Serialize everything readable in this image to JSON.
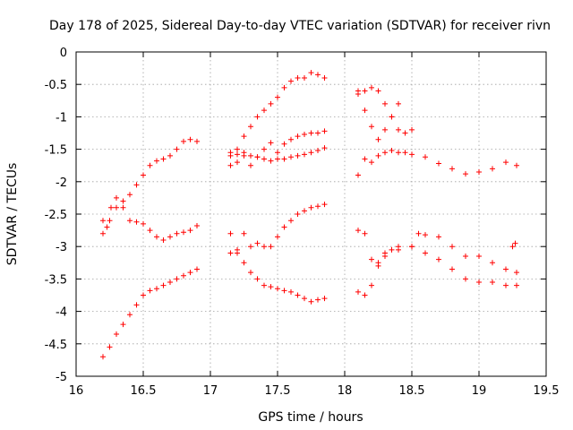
{
  "chart_data": {
    "type": "scatter",
    "title": "Day 178 of 2025, Sidereal Day-to-day VTEC variation (SDTVAR) for receiver rivn",
    "xlabel": "GPS time / hours",
    "ylabel": "SDTVAR / TECUs",
    "xlim": [
      16,
      19.5
    ],
    "ylim": [
      -5,
      0
    ],
    "xticks": [
      "16",
      "16.5",
      "17",
      "17.5",
      "18",
      "18.5",
      "19",
      "19.5"
    ],
    "yticks": [
      "0",
      "-0.5",
      "-1",
      "-1.5",
      "-2",
      "-2.5",
      "-3",
      "-3.5",
      "-4",
      "-4.5",
      "-5"
    ],
    "grid": true,
    "marker": "+",
    "color": "#ff0000",
    "series": [
      {
        "x": [
          16.2,
          16.25,
          16.3,
          16.35,
          16.4,
          16.45,
          16.5,
          16.55,
          16.6,
          16.65,
          16.7,
          16.75,
          16.8,
          16.85,
          16.9
        ],
        "y": [
          -2.8,
          -2.6,
          -2.4,
          -2.3,
          -2.2,
          -2.05,
          -1.9,
          -1.75,
          -1.68,
          -1.65,
          -1.6,
          -1.5,
          -1.38,
          -1.35,
          -1.38
        ]
      },
      {
        "x": [
          16.2,
          16.23,
          16.26,
          16.3,
          16.35,
          16.4,
          16.45,
          16.5,
          16.55,
          16.6,
          16.65,
          16.7,
          16.75,
          16.8,
          16.85,
          16.9
        ],
        "y": [
          -2.6,
          -2.7,
          -2.4,
          -2.25,
          -2.4,
          -2.6,
          -2.62,
          -2.65,
          -2.75,
          -2.85,
          -2.9,
          -2.85,
          -2.8,
          -2.78,
          -2.75,
          -2.68
        ]
      },
      {
        "x": [
          16.2,
          16.25,
          16.3,
          16.35,
          16.4,
          16.45,
          16.5,
          16.55,
          16.6,
          16.65,
          16.7,
          16.75,
          16.8,
          16.85,
          16.9
        ],
        "y": [
          -4.7,
          -4.55,
          -4.35,
          -4.2,
          -4.05,
          -3.9,
          -3.75,
          -3.68,
          -3.65,
          -3.6,
          -3.55,
          -3.5,
          -3.45,
          -3.4,
          -3.35
        ]
      },
      {
        "x": [
          17.15,
          17.2,
          17.25,
          17.3,
          17.35,
          17.4,
          17.45,
          17.5,
          17.55,
          17.6,
          17.65,
          17.7,
          17.75,
          17.8,
          17.85
        ],
        "y": [
          -1.75,
          -1.5,
          -1.3,
          -1.15,
          -1.0,
          -0.9,
          -0.8,
          -0.7,
          -0.55,
          -0.45,
          -0.4,
          -0.4,
          -0.32,
          -0.35,
          -0.4
        ]
      },
      {
        "x": [
          17.15,
          17.2,
          17.25,
          17.3,
          17.35,
          17.4,
          17.45,
          17.5,
          17.55,
          17.6,
          17.65,
          17.7,
          17.75,
          17.8,
          17.85
        ],
        "y": [
          -1.6,
          -1.7,
          -1.55,
          -1.75,
          -1.62,
          -1.5,
          -1.4,
          -1.55,
          -1.42,
          -1.35,
          -1.3,
          -1.27,
          -1.25,
          -1.25,
          -1.22
        ]
      },
      {
        "x": [
          17.15,
          17.2,
          17.25,
          17.3,
          17.35,
          17.4,
          17.45,
          17.5,
          17.55,
          17.6,
          17.65,
          17.7,
          17.75,
          17.8,
          17.85
        ],
        "y": [
          -1.55,
          -1.58,
          -1.6,
          -1.6,
          -1.62,
          -1.65,
          -1.68,
          -1.65,
          -1.65,
          -1.62,
          -1.6,
          -1.58,
          -1.55,
          -1.52,
          -1.48
        ]
      },
      {
        "x": [
          17.15,
          17.2,
          17.25,
          17.3,
          17.35,
          17.4,
          17.45,
          17.5,
          17.55,
          17.6,
          17.65,
          17.7,
          17.75,
          17.8,
          17.85
        ],
        "y": [
          -3.1,
          -3.05,
          -2.8,
          -3.0,
          -2.95,
          -3.0,
          -3.0,
          -2.85,
          -2.7,
          -2.6,
          -2.5,
          -2.45,
          -2.4,
          -2.38,
          -2.35
        ]
      },
      {
        "x": [
          17.15,
          17.2,
          17.25,
          17.3,
          17.35,
          17.4,
          17.45,
          17.5,
          17.55,
          17.6,
          17.65,
          17.7,
          17.75,
          17.8,
          17.85
        ],
        "y": [
          -2.8,
          -3.1,
          -3.25,
          -3.4,
          -3.5,
          -3.6,
          -3.62,
          -3.65,
          -3.68,
          -3.7,
          -3.75,
          -3.8,
          -3.85,
          -3.82,
          -3.8
        ]
      },
      {
        "x": [
          18.1,
          18.15,
          18.2,
          18.25,
          18.3,
          18.35,
          18.4,
          18.45,
          18.5,
          18.6,
          18.7,
          18.8,
          18.9,
          19.0,
          19.1,
          19.2,
          19.28
        ],
        "y": [
          -1.9,
          -1.65,
          -1.7,
          -1.6,
          -1.55,
          -1.52,
          -1.55,
          -1.55,
          -1.58,
          -1.62,
          -1.72,
          -1.8,
          -1.88,
          -1.85,
          -1.8,
          -1.7,
          -1.75
        ]
      },
      {
        "x": [
          18.1,
          18.15,
          18.2,
          18.25,
          18.3,
          18.35,
          18.4,
          18.45,
          18.5
        ],
        "y": [
          -0.65,
          -0.6,
          -0.55,
          -0.6,
          -0.8,
          -1.0,
          -1.2,
          -1.25,
          -1.2
        ]
      },
      {
        "x": [
          18.1,
          18.15,
          18.2,
          18.25,
          18.3,
          18.35,
          18.4
        ],
        "y": [
          -0.6,
          -0.9,
          -1.15,
          -1.35,
          -1.2,
          -1.0,
          -0.8
        ]
      },
      {
        "x": [
          18.1,
          18.15,
          18.2,
          18.25,
          18.3,
          18.4,
          18.5,
          18.55,
          18.6,
          18.7,
          18.8,
          18.9,
          19.0,
          19.1,
          19.2,
          19.28
        ],
        "y": [
          -3.7,
          -3.75,
          -3.6,
          -3.3,
          -3.1,
          -3.05,
          -3.0,
          -2.8,
          -2.82,
          -2.85,
          -3.0,
          -3.15,
          -3.15,
          -3.25,
          -3.35,
          -3.4
        ]
      },
      {
        "x": [
          18.1,
          18.15,
          18.2,
          18.25,
          18.3,
          18.35,
          18.4,
          18.5,
          18.6,
          18.7,
          18.8,
          18.9,
          19.0,
          19.1,
          19.2,
          19.28
        ],
        "y": [
          -2.75,
          -2.8,
          -3.2,
          -3.25,
          -3.15,
          -3.05,
          -3.0,
          -3.0,
          -3.1,
          -3.2,
          -3.35,
          -3.5,
          -3.55,
          -3.55,
          -3.6,
          -3.6
        ]
      },
      {
        "x": [
          19.25,
          19.27
        ],
        "y": [
          -3.0,
          -2.95
        ]
      }
    ]
  }
}
